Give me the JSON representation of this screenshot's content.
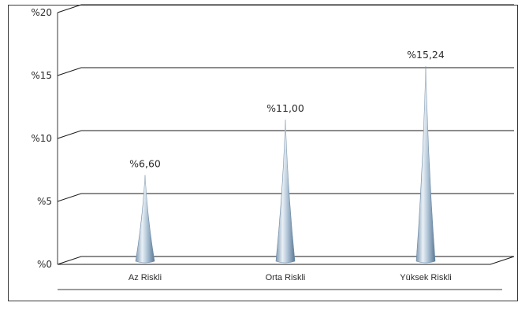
{
  "chart_data": {
    "type": "bar",
    "categories": [
      "Az Riskli",
      "Orta Riskli",
      "Yüksek Riskli"
    ],
    "values": [
      6.6,
      11.0,
      15.24
    ],
    "data_labels": [
      "%6,60",
      "%11,00",
      "%15,24"
    ],
    "yticks": [
      0,
      5,
      10,
      15,
      20
    ],
    "ytick_labels": [
      "%0",
      "%5",
      "%10",
      "%15",
      "%20"
    ],
    "ylim": [
      0,
      20
    ],
    "title": "",
    "xlabel": "",
    "ylabel": "",
    "grid": true,
    "legend": "none",
    "colors": {
      "bar_light": "#e6eef6",
      "bar_mid": "#a9bfd3",
      "bar_dark": "#5f7d99",
      "grid": "#1a1a1a",
      "frame": "#3a3a3a"
    }
  }
}
